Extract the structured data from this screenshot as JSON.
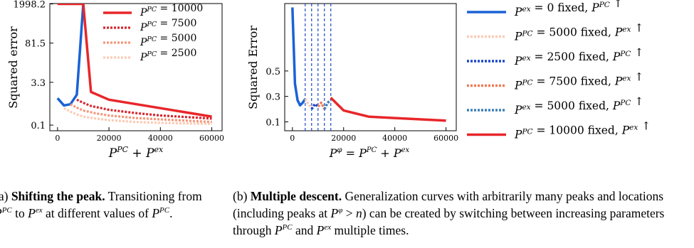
{
  "chart_data": [
    {
      "type": "line",
      "ylabel": "Squared error",
      "xlabel": "P^PC + P^ex",
      "y_scale": "log",
      "xlim": [
        -3000,
        64000
      ],
      "ylim_ticks": [
        0.1,
        3.3,
        81.5,
        1998.2
      ],
      "yticks": [
        "0.1",
        "3.3",
        "81.5",
        "1998.2"
      ],
      "xticks": [
        "0",
        "20000",
        "40000",
        "60000"
      ],
      "xtick_values": [
        0,
        20000,
        40000,
        60000
      ],
      "legend_position": "top-right",
      "series": [
        {
          "name": "P^PC = 10000",
          "color": "#e8262a",
          "dash": "solid",
          "width": 3.5,
          "x": [
            0,
            10000,
            13000,
            20000,
            40000,
            60000
          ],
          "y": [
            1998.2,
            1998.2,
            1.5,
            0.8,
            0.4,
            0.2
          ]
        },
        {
          "name": "P^PC = 7500",
          "color": "#d7262e",
          "dash": "dot",
          "width": 3.2,
          "x": [
            7500,
            10000,
            13000,
            20000,
            30000,
            40000,
            60000
          ],
          "y": [
            0.8,
            0.62,
            0.48,
            0.35,
            0.27,
            0.22,
            0.17
          ]
        },
        {
          "name": "P^PC = 5000",
          "color": "#f4977b",
          "dash": "dot",
          "width": 3.2,
          "x": [
            5000,
            7500,
            10000,
            15000,
            20000,
            30000,
            40000,
            60000
          ],
          "y": [
            0.55,
            0.42,
            0.33,
            0.26,
            0.22,
            0.18,
            0.16,
            0.13
          ]
        },
        {
          "name": "P^PC = 2500",
          "color": "#fccbb4",
          "dash": "dot",
          "width": 3.2,
          "x": [
            2500,
            5000,
            7500,
            10000,
            15000,
            20000,
            30000,
            40000,
            60000
          ],
          "y": [
            0.4,
            0.3,
            0.24,
            0.2,
            0.17,
            0.15,
            0.13,
            0.12,
            0.11
          ]
        },
        {
          "name": "",
          "color": "#1a62d6",
          "dash": "solid",
          "width": 3.5,
          "x": [
            0,
            2500,
            5000,
            7500,
            10000
          ],
          "y": [
            0.9,
            0.5,
            0.55,
            1.2,
            1998.2
          ]
        }
      ]
    },
    {
      "type": "line",
      "ylabel": "Squared Error",
      "xlabel": "P^φ = P^PC + P^ex",
      "ylim": [
        0.03,
        1.03
      ],
      "yticks": [
        "0.1",
        "0.3",
        "0.5"
      ],
      "ytick_values": [
        0.1,
        0.3,
        0.5
      ],
      "xticks": [
        "0",
        "20000",
        "40000",
        "60000"
      ],
      "xtick_values": [
        0,
        20000,
        40000,
        60000
      ],
      "xlim": [
        -3000,
        64000
      ],
      "vlines": [
        5000,
        7500,
        10000,
        12500,
        15000
      ],
      "legend_position": "outside-right",
      "series": [
        {
          "name": "P^ex = 0 fixed, P^PC ↑",
          "color": "#1a62d6",
          "dash": "solid",
          "width": 3.5,
          "x": [
            0,
            1000,
            2000,
            3000,
            4000,
            5000
          ],
          "y": [
            1.0,
            0.4,
            0.27,
            0.23,
            0.25,
            0.28
          ]
        },
        {
          "name": "P^PC = 5000 fixed, P^ex ↑",
          "color": "#fccbb4",
          "dash": "dot",
          "width": 3.5,
          "x": [
            5000,
            6250,
            7500
          ],
          "y": [
            0.28,
            0.24,
            0.21
          ]
        },
        {
          "name": "P^ex = 2500 fixed, P^PC ↑",
          "color": "#1a46c8",
          "dash": "dot",
          "width": 3.5,
          "x": [
            7500,
            8750,
            10000
          ],
          "y": [
            0.2,
            0.24,
            0.22
          ]
        },
        {
          "name": "P^PC = 7500 fixed, P^ex ↑",
          "color": "#f07a55",
          "dash": "dot",
          "width": 3.5,
          "x": [
            10000,
            11250,
            12500
          ],
          "y": [
            0.22,
            0.25,
            0.2
          ]
        },
        {
          "name": "P^ex = 5000 fixed, P^PC ↑",
          "color": "#3d7fb8",
          "dash": "dot",
          "width": 3.5,
          "x": [
            12500,
            13750,
            15000
          ],
          "y": [
            0.2,
            0.25,
            0.27
          ]
        },
        {
          "name": "P^PC = 10000 fixed, P^ex ↑",
          "color": "#e8262a",
          "dash": "solid",
          "width": 3.5,
          "x": [
            15000,
            20000,
            30000,
            40000,
            60000
          ],
          "y": [
            0.29,
            0.19,
            0.14,
            0.13,
            0.11
          ]
        }
      ]
    }
  ],
  "captions": {
    "a_prefix": "(a) ",
    "a_bold": "Shifting the peak.",
    "a_text": " Transitioning from P^PC to P^ex at different values of P^PC.",
    "b_prefix": "(b) ",
    "b_bold": "Multiple descent.",
    "b_text": " Generalization curves with arbitrarily many peaks and locations (including peaks at P^φ > n) can be created by switching between increasing parameters through P^PC and P^ex multiple times."
  }
}
